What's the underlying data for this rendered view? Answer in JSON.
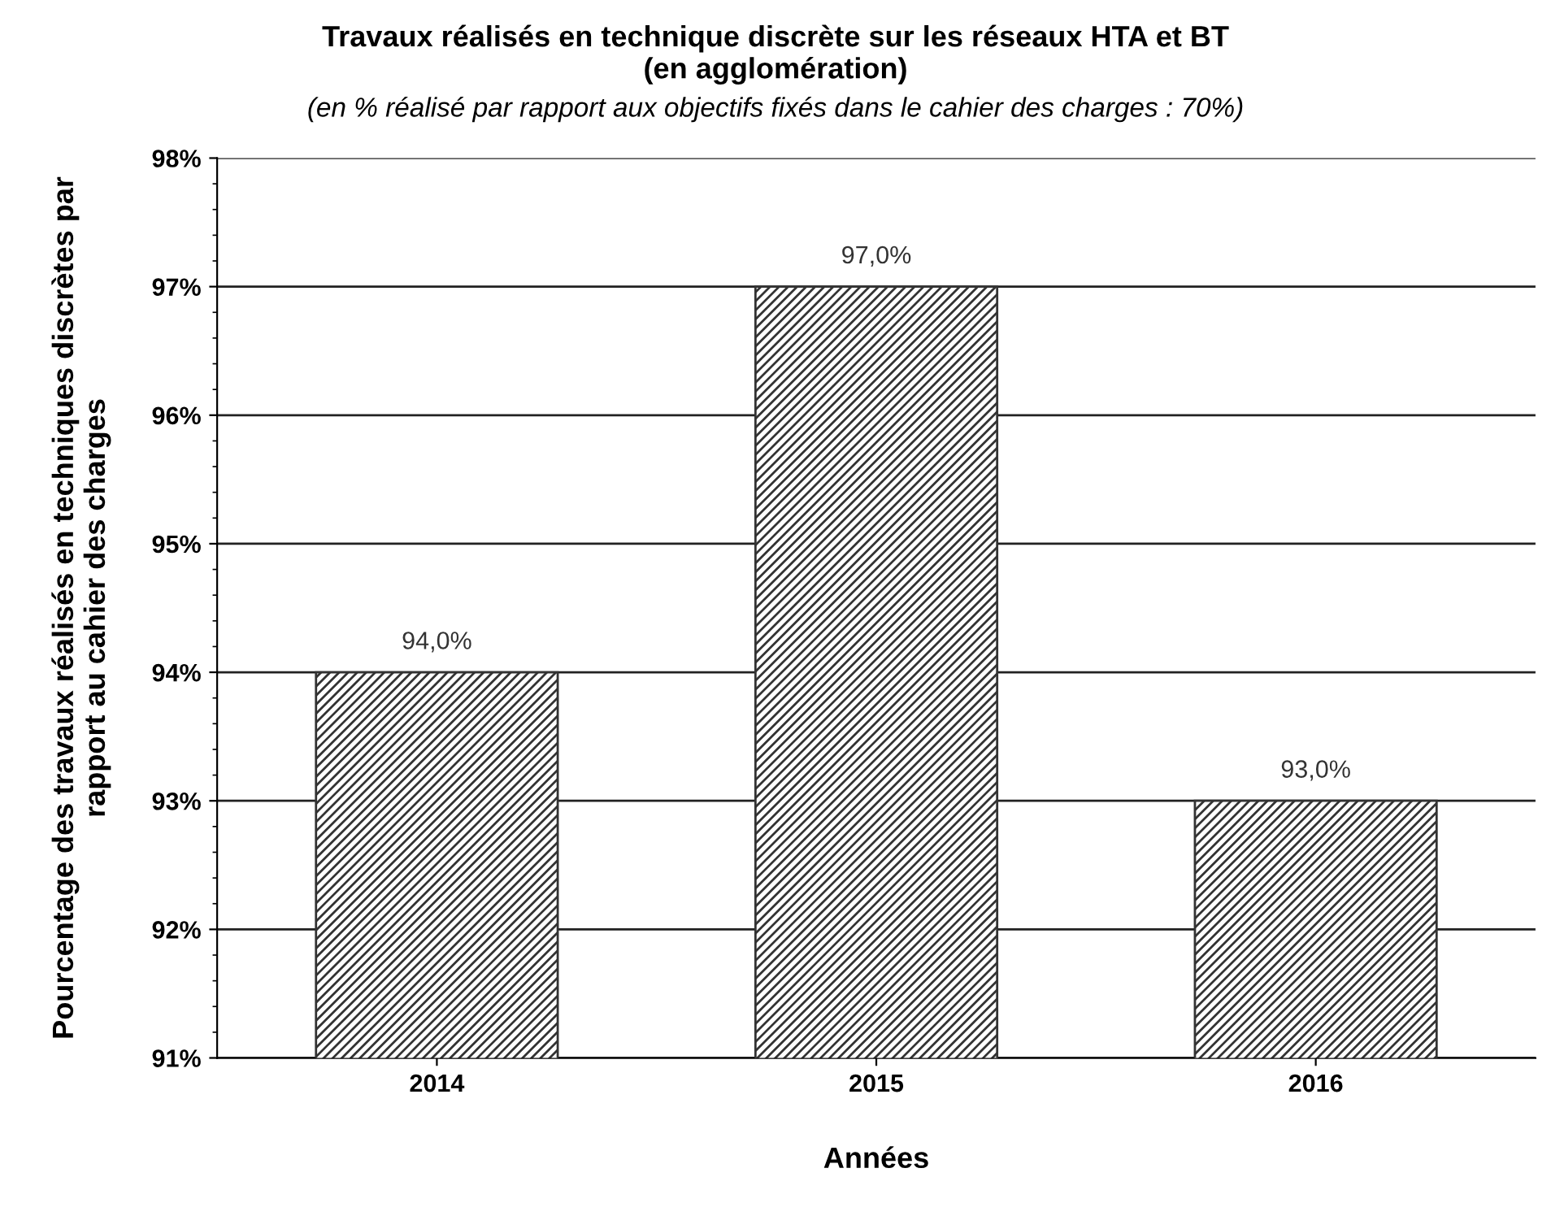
{
  "chart_data": {
    "type": "bar",
    "title": "Travaux réalisés en technique discrète sur les réseaux HTA et BT\n(en agglomération)",
    "subtitle": "(en % réalisé par rapport aux objectifs fixés dans le cahier des charges : 70%)",
    "xlabel": "Années",
    "ylabel": "Pourcentage des travaux réalisés en techniques discrètes par\nrapport au cahier des charges",
    "categories": [
      "2014",
      "2015",
      "2016"
    ],
    "values": [
      94,
      97,
      93
    ],
    "value_labels": [
      "94,0%",
      "97,0%",
      "93,0%"
    ],
    "color": "#333333",
    "ylim": [
      91,
      98
    ],
    "yticks": [
      {
        "value": 91,
        "label": "91%"
      },
      {
        "value": 92,
        "label": "92%"
      },
      {
        "value": 93,
        "label": "93%"
      },
      {
        "value": 94,
        "label": "94%"
      },
      {
        "value": 95,
        "label": "95%"
      },
      {
        "value": 96,
        "label": "96%"
      },
      {
        "value": 97,
        "label": "97%"
      },
      {
        "value": 98,
        "label": "98%"
      }
    ],
    "grid": "y"
  }
}
